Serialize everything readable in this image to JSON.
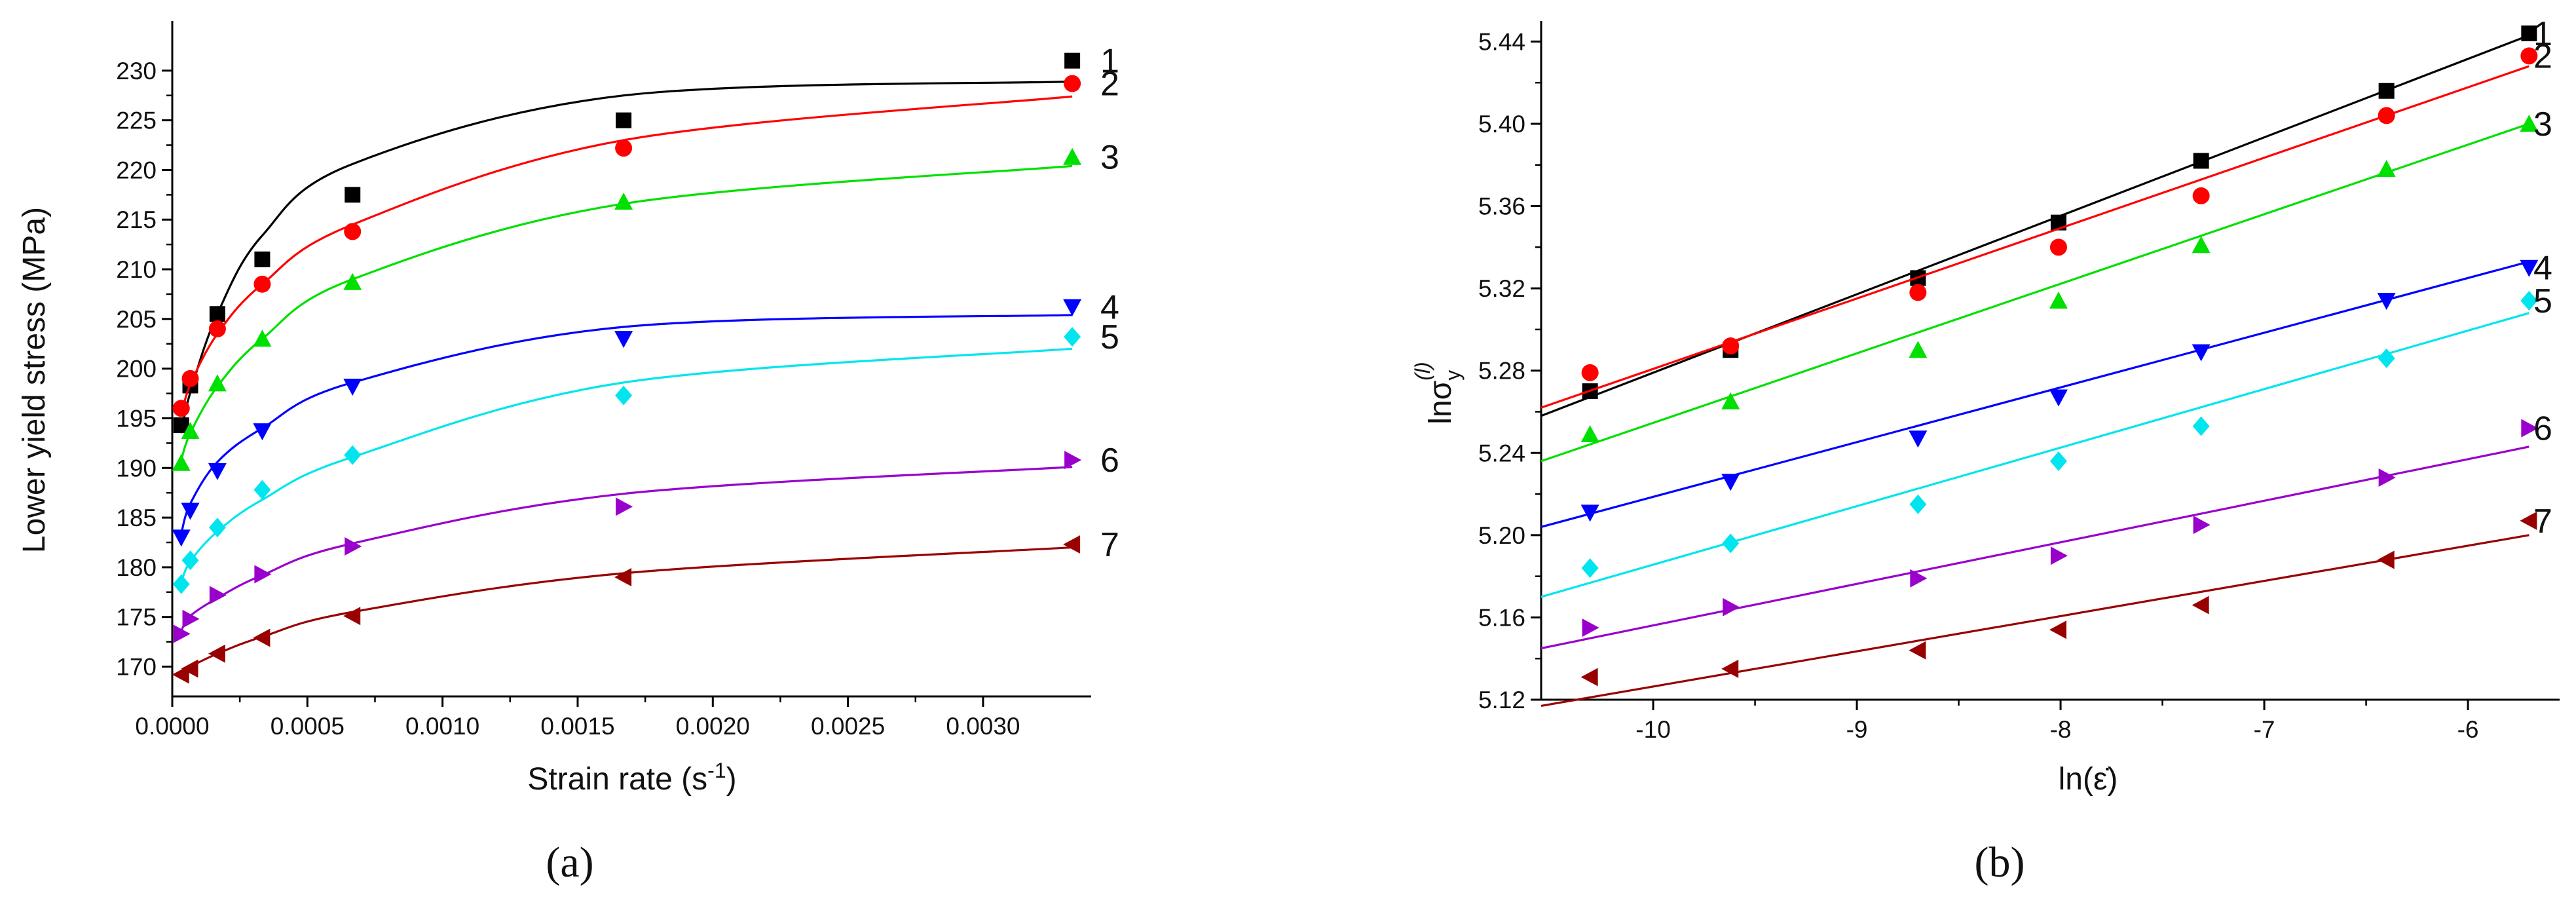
{
  "chart_data": [
    {
      "panel": "a",
      "panel_caption": "(a)",
      "type": "scatter",
      "xlabel": "Strain rate (s",
      "xlabel_sup": "-1",
      "xlabel_end": ")",
      "ylabel": "Lower yield stress (MPa)",
      "xlim": [
        0,
        0.0034
      ],
      "ylim": [
        167,
        235
      ],
      "xticks": [
        {
          "v": 0.0,
          "label": "0.0000"
        },
        {
          "v": 0.0005,
          "label": "0.0005"
        },
        {
          "v": 0.001,
          "label": "0.0010"
        },
        {
          "v": 0.0015,
          "label": "0.0015"
        },
        {
          "v": 0.002,
          "label": "0.0020"
        },
        {
          "v": 0.0025,
          "label": "0.0025"
        },
        {
          "v": 0.003,
          "label": "0.0030"
        }
      ],
      "yticks": [
        {
          "v": 170,
          "label": "170"
        },
        {
          "v": 175,
          "label": "175"
        },
        {
          "v": 180,
          "label": "180"
        },
        {
          "v": 185,
          "label": "185"
        },
        {
          "v": 190,
          "label": "190"
        },
        {
          "v": 195,
          "label": "195"
        },
        {
          "v": 200,
          "label": "200"
        },
        {
          "v": 205,
          "label": "205"
        },
        {
          "v": 210,
          "label": "210"
        },
        {
          "v": 215,
          "label": "215"
        },
        {
          "v": 220,
          "label": "220"
        },
        {
          "v": 225,
          "label": "225"
        },
        {
          "v": 230,
          "label": "230"
        }
      ],
      "x": [
        3.33e-05,
        6.67e-05,
        0.000167,
        0.000333,
        0.000667,
        0.00167,
        0.00333
      ],
      "series": [
        {
          "name": "1",
          "color": "#000000",
          "marker": "square",
          "values": [
            194.3,
            198.3,
            205.5,
            211.0,
            217.5,
            225.0,
            231.0
          ],
          "fit": [
            193.5,
            197.6,
            205.5,
            213.4,
            220.6,
            227.5,
            228.9
          ]
        },
        {
          "name": "2",
          "color": "#ff0000",
          "marker": "circle",
          "values": [
            196.0,
            199.0,
            204.0,
            208.5,
            213.8,
            222.2,
            228.7
          ],
          "fit": [
            195.2,
            198.4,
            203.5,
            208.5,
            214.5,
            223.0,
            227.4
          ]
        },
        {
          "name": "3",
          "color": "#00e000",
          "marker": "triangle-up",
          "values": [
            190.5,
            193.7,
            198.5,
            203.0,
            208.7,
            216.8,
            221.3
          ],
          "fit": [
            190.8,
            193.5,
            198.2,
            203.0,
            209.0,
            216.6,
            220.4
          ]
        },
        {
          "name": "4",
          "color": "#0000ff",
          "marker": "triangle-down",
          "values": [
            183.0,
            185.7,
            189.7,
            193.7,
            198.2,
            203.0,
            206.2
          ],
          "fit": [
            183.4,
            186.4,
            190.6,
            194.0,
            198.6,
            204.2,
            205.4
          ]
        },
        {
          "name": "5",
          "color": "#00e5ee",
          "marker": "diamond",
          "values": [
            178.3,
            180.7,
            184.0,
            187.8,
            191.3,
            197.3,
            203.2
          ],
          "fit": [
            178.5,
            180.6,
            183.6,
            186.8,
            191.1,
            198.6,
            202.0
          ]
        },
        {
          "name": "6",
          "color": "#9900cc",
          "marker": "triangle-right",
          "values": [
            173.3,
            174.8,
            177.2,
            179.3,
            182.1,
            186.1,
            190.8
          ],
          "fit": [
            173.6,
            175.1,
            176.9,
            179.2,
            182.4,
            187.4,
            190.1
          ]
        },
        {
          "name": "7",
          "color": "#990000",
          "marker": "triangle-left",
          "values": [
            169.2,
            169.8,
            171.3,
            172.9,
            175.1,
            179.0,
            182.3
          ],
          "fit": [
            169.5,
            170.0,
            171.3,
            173.0,
            175.5,
            179.4,
            182.0
          ]
        }
      ]
    },
    {
      "panel": "b",
      "panel_caption": "(b)",
      "type": "scatter",
      "xlabel": "ln(ε̇)",
      "ylabel": "lnσ",
      "ylabel_sub": "y",
      "ylabel_sup": "(l)",
      "xlim": [
        -10.55,
        -5.55
      ],
      "ylim": [
        5.12,
        5.45
      ],
      "xticks": [
        {
          "v": -10,
          "label": "-10"
        },
        {
          "v": -9,
          "label": "-9"
        },
        {
          "v": -8,
          "label": "-8"
        },
        {
          "v": -7,
          "label": "-7"
        },
        {
          "v": -6,
          "label": "-6"
        }
      ],
      "yticks": [
        {
          "v": 5.12,
          "label": "5.12"
        },
        {
          "v": 5.16,
          "label": "5.16"
        },
        {
          "v": 5.2,
          "label": "5.20"
        },
        {
          "v": 5.24,
          "label": "5.24"
        },
        {
          "v": 5.28,
          "label": "5.28"
        },
        {
          "v": 5.32,
          "label": "5.32"
        },
        {
          "v": 5.36,
          "label": "5.36"
        },
        {
          "v": 5.4,
          "label": "5.40"
        },
        {
          "v": 5.44,
          "label": "5.44"
        }
      ],
      "x": [
        -10.31,
        -9.62,
        -8.7,
        -8.01,
        -7.31,
        -6.4,
        -5.7
      ],
      "series": [
        {
          "name": "1",
          "color": "#000000",
          "marker": "square",
          "values": [
            5.27,
            5.29,
            5.325,
            5.352,
            5.382,
            5.416,
            5.444
          ],
          "fit": {
            "x0": -10.55,
            "y0": 5.258,
            "x1": -5.7,
            "y1": 5.443
          }
        },
        {
          "name": "2",
          "color": "#ff0000",
          "marker": "circle",
          "values": [
            5.279,
            5.292,
            5.318,
            5.34,
            5.365,
            5.404,
            5.433
          ],
          "fit": {
            "x0": -10.55,
            "y0": 5.262,
            "x1": -5.7,
            "y1": 5.428
          }
        },
        {
          "name": "3",
          "color": "#00e000",
          "marker": "triangle-up",
          "values": [
            5.249,
            5.265,
            5.29,
            5.314,
            5.341,
            5.378,
            5.4
          ],
          "fit": {
            "x0": -10.55,
            "y0": 5.236,
            "x1": -5.7,
            "y1": 5.4
          }
        },
        {
          "name": "4",
          "color": "#0000ff",
          "marker": "triangle-down",
          "values": [
            5.211,
            5.226,
            5.247,
            5.267,
            5.289,
            5.314,
            5.33
          ],
          "fit": {
            "x0": -10.55,
            "y0": 5.204,
            "x1": -5.7,
            "y1": 5.333
          }
        },
        {
          "name": "5",
          "color": "#00e5ee",
          "marker": "diamond",
          "values": [
            5.184,
            5.196,
            5.215,
            5.236,
            5.253,
            5.286,
            5.314
          ],
          "fit": {
            "x0": -10.55,
            "y0": 5.17,
            "x1": -5.7,
            "y1": 5.308
          }
        },
        {
          "name": "6",
          "color": "#9900cc",
          "marker": "triangle-right",
          "values": [
            5.155,
            5.165,
            5.179,
            5.19,
            5.205,
            5.228,
            5.252
          ],
          "fit": {
            "x0": -10.55,
            "y0": 5.145,
            "x1": -5.7,
            "y1": 5.243
          }
        },
        {
          "name": "7",
          "color": "#990000",
          "marker": "triangle-left",
          "values": [
            5.131,
            5.135,
            5.144,
            5.154,
            5.166,
            5.188,
            5.207
          ],
          "fit": {
            "x0": -10.55,
            "y0": 5.117,
            "x1": -5.7,
            "y1": 5.2
          }
        }
      ]
    }
  ]
}
